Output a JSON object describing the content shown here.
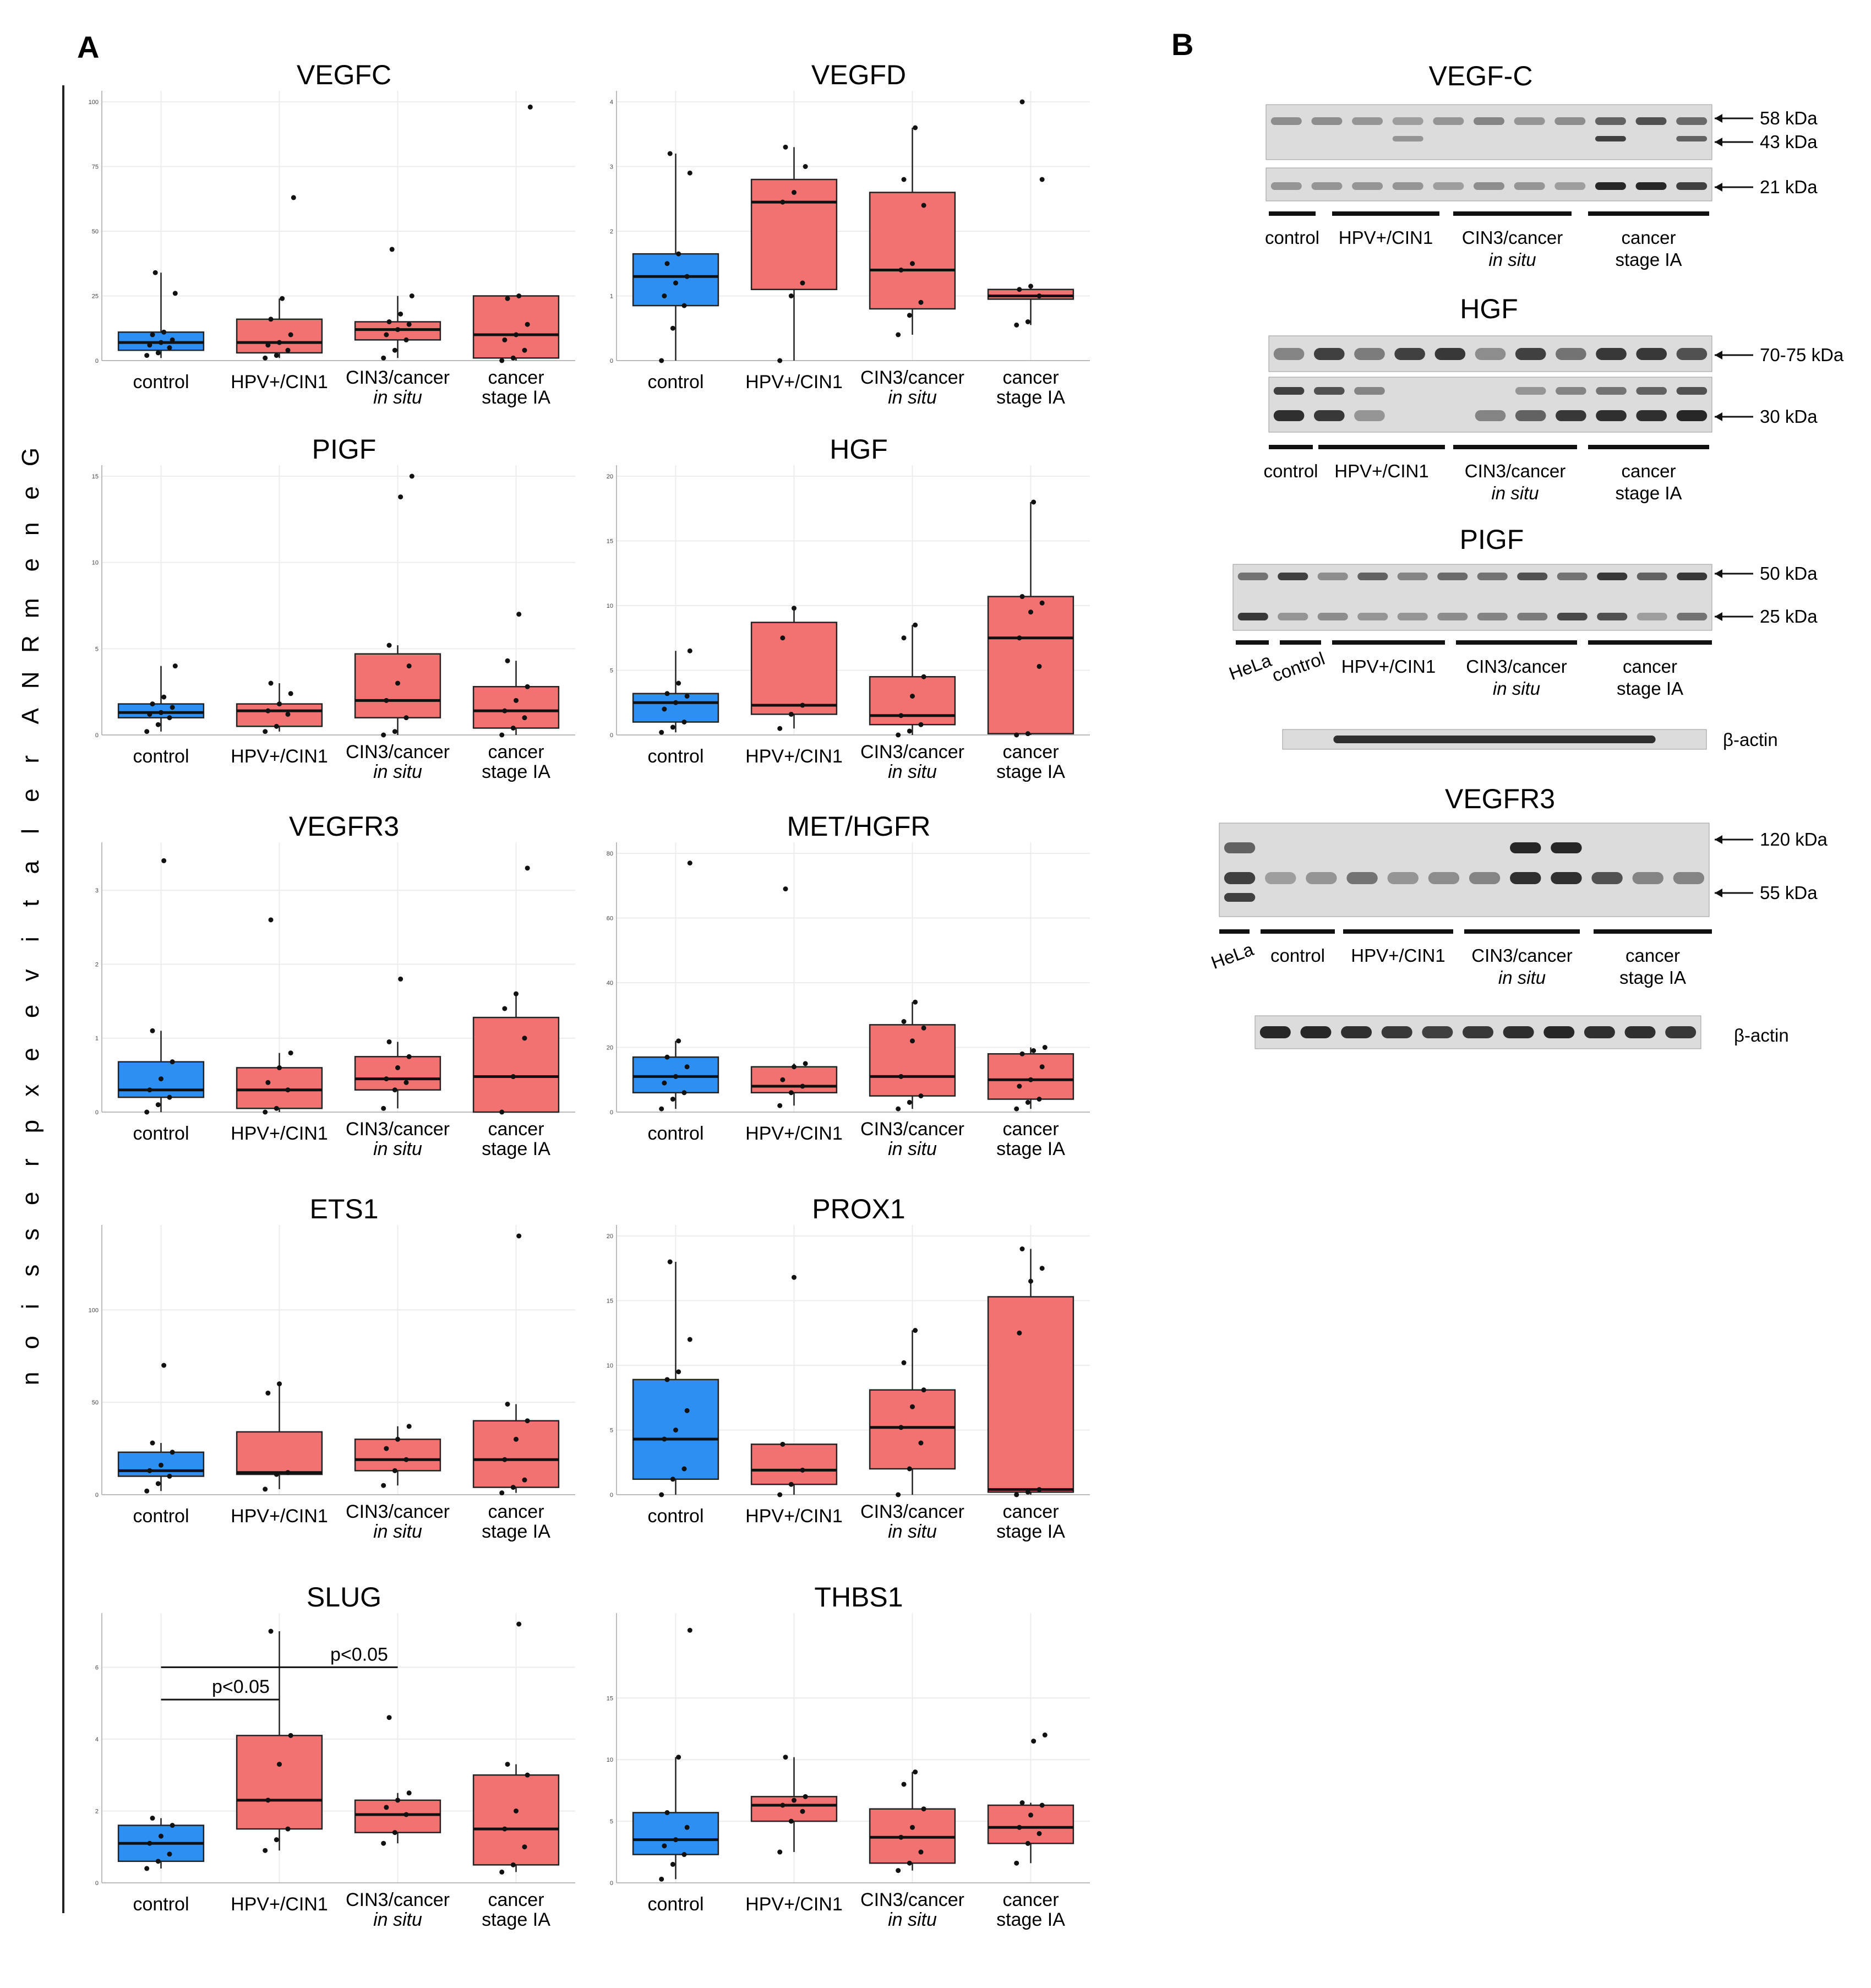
{
  "panel_a_label": "A",
  "panel_b_label": "B",
  "y_axis_label": "Gene mRNA relative expression",
  "colors": {
    "control": "#2e8ff2",
    "other": "#f27272",
    "grid": "#ececec",
    "axis": "#333333"
  },
  "chart_data": [
    {
      "type": "box",
      "title": "VEGFC",
      "ylim": [
        0,
        100
      ],
      "yticks": [
        0,
        25,
        50,
        75,
        100
      ],
      "categories": [
        "control",
        "HPV+/CIN1",
        "CIN3/cancer in situ",
        "cancer stage IA"
      ],
      "boxes": [
        {
          "q1": 4,
          "median": 7,
          "q3": 11,
          "whisker_low": 1,
          "whisker_high": 34,
          "points": [
            2,
            3,
            5,
            6,
            7,
            8,
            10,
            11,
            26,
            34
          ]
        },
        {
          "q1": 3,
          "median": 7,
          "q3": 16,
          "whisker_low": 1,
          "whisker_high": 24,
          "points": [
            1,
            2,
            4,
            6,
            7,
            10,
            16,
            24,
            63
          ]
        },
        {
          "q1": 8,
          "median": 12,
          "q3": 15,
          "whisker_low": 1,
          "whisker_high": 25,
          "points": [
            1,
            4,
            8,
            10,
            12,
            14,
            15,
            18,
            25,
            43
          ]
        },
        {
          "q1": 1,
          "median": 10,
          "q3": 25,
          "whisker_low": 0,
          "whisker_high": 25,
          "points": [
            0,
            1,
            4,
            8,
            10,
            14,
            24,
            25,
            98
          ]
        }
      ]
    },
    {
      "type": "box",
      "title": "VEGFD",
      "ylim": [
        0,
        4
      ],
      "yticks": [
        0,
        1,
        2,
        3,
        4
      ],
      "categories": [
        "control",
        "HPV+/CIN1",
        "CIN3/cancer in situ",
        "cancer stage IA"
      ],
      "boxes": [
        {
          "q1": 0.85,
          "median": 1.3,
          "q3": 1.65,
          "whisker_low": 0,
          "whisker_high": 3.2,
          "points": [
            0,
            0.5,
            0.85,
            1,
            1.2,
            1.3,
            1.5,
            1.65,
            2.9,
            3.2
          ]
        },
        {
          "q1": 1.1,
          "median": 2.45,
          "q3": 2.8,
          "whisker_low": 0,
          "whisker_high": 3.3,
          "points": [
            0,
            1,
            1.2,
            2.45,
            2.6,
            3.0,
            3.3
          ]
        },
        {
          "q1": 0.8,
          "median": 1.4,
          "q3": 2.6,
          "whisker_low": 0.4,
          "whisker_high": 3.6,
          "points": [
            0.4,
            0.7,
            0.9,
            1.4,
            1.5,
            2.4,
            2.8,
            3.6
          ]
        },
        {
          "q1": 0.95,
          "median": 1.0,
          "q3": 1.1,
          "whisker_low": 0.55,
          "whisker_high": 1.15,
          "points": [
            0.55,
            0.6,
            1.0,
            1.1,
            1.15,
            2.8,
            4.0
          ]
        }
      ]
    },
    {
      "type": "box",
      "title": "PIGF",
      "ylim": [
        0,
        15
      ],
      "yticks": [
        0,
        5,
        10,
        15
      ],
      "categories": [
        "control",
        "HPV+/CIN1",
        "CIN3/cancer in situ",
        "cancer stage IA"
      ],
      "boxes": [
        {
          "q1": 1.0,
          "median": 1.3,
          "q3": 1.8,
          "whisker_low": 0.2,
          "whisker_high": 4.0,
          "points": [
            0.2,
            0.6,
            1.0,
            1.2,
            1.3,
            1.6,
            1.8,
            2.2,
            4.0
          ]
        },
        {
          "q1": 0.5,
          "median": 1.4,
          "q3": 1.8,
          "whisker_low": 0.2,
          "whisker_high": 3.0,
          "points": [
            0.2,
            0.5,
            1.2,
            1.4,
            1.8,
            2.4,
            3.0
          ]
        },
        {
          "q1": 1.0,
          "median": 2.0,
          "q3": 4.7,
          "whisker_low": 0,
          "whisker_high": 5.2,
          "points": [
            0,
            0.2,
            1.0,
            2.0,
            3.0,
            4.0,
            5.2,
            13.8,
            15
          ]
        },
        {
          "q1": 0.4,
          "median": 1.4,
          "q3": 2.8,
          "whisker_low": 0,
          "whisker_high": 4.3,
          "points": [
            0,
            0.4,
            1.0,
            1.4,
            2.0,
            2.8,
            4.3,
            7.0
          ]
        }
      ]
    },
    {
      "type": "box",
      "title": "HGF",
      "ylim": [
        0,
        20
      ],
      "yticks": [
        0,
        5,
        10,
        15,
        20
      ],
      "categories": [
        "control",
        "HPV+/CIN1",
        "CIN3/cancer in situ",
        "cancer stage IA"
      ],
      "boxes": [
        {
          "q1": 1.0,
          "median": 2.5,
          "q3": 3.2,
          "whisker_low": 0.2,
          "whisker_high": 6.5,
          "points": [
            0.2,
            0.6,
            1.0,
            2.0,
            2.5,
            3.0,
            3.2,
            4.0,
            6.5
          ]
        },
        {
          "q1": 1.6,
          "median": 2.3,
          "q3": 8.7,
          "whisker_low": 0.5,
          "whisker_high": 9.8,
          "points": [
            0.5,
            1.6,
            2.3,
            7.5,
            9.8
          ]
        },
        {
          "q1": 0.8,
          "median": 1.5,
          "q3": 4.5,
          "whisker_low": 0,
          "whisker_high": 8.5,
          "points": [
            0,
            0.3,
            0.8,
            1.5,
            3.0,
            4.5,
            7.5,
            8.5
          ]
        },
        {
          "q1": 0.1,
          "median": 7.5,
          "q3": 10.7,
          "whisker_low": 0,
          "whisker_high": 18,
          "points": [
            0,
            0.1,
            5.3,
            7.5,
            9.5,
            10.2,
            10.7,
            18
          ]
        }
      ]
    },
    {
      "type": "box",
      "title": "VEGFR3",
      "ylim": [
        0,
        3.5
      ],
      "yticks": [
        0,
        1,
        2,
        3
      ],
      "categories": [
        "control",
        "HPV+/CIN1",
        "CIN3/cancer in situ",
        "cancer stage IA"
      ],
      "boxes": [
        {
          "q1": 0.2,
          "median": 0.3,
          "q3": 0.68,
          "whisker_low": 0,
          "whisker_high": 1.1,
          "points": [
            0,
            0.1,
            0.2,
            0.3,
            0.45,
            0.68,
            1.1,
            3.4
          ]
        },
        {
          "q1": 0.05,
          "median": 0.3,
          "q3": 0.6,
          "whisker_low": 0,
          "whisker_high": 0.8,
          "points": [
            0,
            0.05,
            0.3,
            0.4,
            0.6,
            0.8,
            2.6
          ]
        },
        {
          "q1": 0.3,
          "median": 0.45,
          "q3": 0.75,
          "whisker_low": 0.05,
          "whisker_high": 0.95,
          "points": [
            0.05,
            0.3,
            0.4,
            0.45,
            0.6,
            0.75,
            0.95,
            1.8
          ]
        },
        {
          "q1": 0,
          "median": 0.48,
          "q3": 1.28,
          "whisker_low": 0,
          "whisker_high": 1.6,
          "points": [
            0,
            0.48,
            1.0,
            1.4,
            1.6,
            3.3
          ]
        }
      ]
    },
    {
      "type": "box",
      "title": "MET/HGFR",
      "ylim": [
        0,
        80
      ],
      "yticks": [
        0,
        20,
        40,
        60,
        80
      ],
      "categories": [
        "control",
        "HPV+/CIN1",
        "CIN3/cancer in situ",
        "cancer stage IA"
      ],
      "boxes": [
        {
          "q1": 6,
          "median": 11,
          "q3": 17,
          "whisker_low": 1,
          "whisker_high": 22,
          "points": [
            1,
            4,
            6,
            9,
            11,
            14,
            17,
            22,
            77
          ]
        },
        {
          "q1": 6,
          "median": 8,
          "q3": 14,
          "whisker_low": 2,
          "whisker_high": 15,
          "points": [
            2,
            6,
            8,
            10,
            14,
            15,
            69
          ]
        },
        {
          "q1": 5,
          "median": 11,
          "q3": 27,
          "whisker_low": 1,
          "whisker_high": 34,
          "points": [
            1,
            3,
            5,
            11,
            22,
            26,
            28,
            34
          ]
        },
        {
          "q1": 4,
          "median": 10,
          "q3": 18,
          "whisker_low": 1,
          "whisker_high": 20,
          "points": [
            1,
            3,
            4,
            8,
            10,
            14,
            18,
            19,
            20
          ]
        }
      ]
    },
    {
      "type": "box",
      "title": "ETS1",
      "ylim": [
        0,
        140
      ],
      "yticks": [
        0,
        50,
        100
      ],
      "categories": [
        "control",
        "HPV+/CIN1",
        "CIN3/cancer in situ",
        "cancer stage IA"
      ],
      "boxes": [
        {
          "q1": 10,
          "median": 13,
          "q3": 23,
          "whisker_low": 2,
          "whisker_high": 28,
          "points": [
            2,
            6,
            10,
            13,
            16,
            23,
            28,
            70
          ]
        },
        {
          "q1": 11,
          "median": 12,
          "q3": 34,
          "whisker_low": 3,
          "whisker_high": 60,
          "points": [
            3,
            11,
            12,
            55,
            60
          ]
        },
        {
          "q1": 13,
          "median": 19,
          "q3": 30,
          "whisker_low": 5,
          "whisker_high": 37,
          "points": [
            5,
            13,
            19,
            25,
            30,
            37
          ]
        },
        {
          "q1": 4,
          "median": 19,
          "q3": 40,
          "whisker_low": 1,
          "whisker_high": 49,
          "points": [
            1,
            4,
            8,
            19,
            30,
            40,
            49,
            140
          ]
        }
      ]
    },
    {
      "type": "box",
      "title": "PROX1",
      "ylim": [
        0,
        20
      ],
      "yticks": [
        0,
        5,
        10,
        15,
        20
      ],
      "categories": [
        "control",
        "HPV+/CIN1",
        "CIN3/cancer in situ",
        "cancer stage IA"
      ],
      "boxes": [
        {
          "q1": 1.2,
          "median": 4.3,
          "q3": 8.9,
          "whisker_low": 0,
          "whisker_high": 18,
          "points": [
            0,
            1.2,
            2.0,
            4.3,
            5.0,
            6.5,
            8.9,
            9.5,
            12,
            18
          ]
        },
        {
          "q1": 0.8,
          "median": 1.9,
          "q3": 3.9,
          "whisker_low": 0,
          "whisker_high": 3.9,
          "points": [
            0,
            0.8,
            1.9,
            3.9,
            16.8
          ]
        },
        {
          "q1": 2.0,
          "median": 5.2,
          "q3": 8.1,
          "whisker_low": 0,
          "whisker_high": 12.7,
          "points": [
            0,
            2.0,
            4.0,
            5.2,
            6.8,
            8.1,
            10.2,
            12.7
          ]
        },
        {
          "q1": 0.2,
          "median": 0.4,
          "q3": 15.3,
          "whisker_low": 0,
          "whisker_high": 19,
          "points": [
            0,
            0.2,
            0.4,
            12.5,
            16.5,
            17.5,
            19
          ]
        }
      ]
    },
    {
      "type": "box",
      "title": "SLUG",
      "ylim": [
        0,
        7.2
      ],
      "yticks": [
        0,
        2,
        4,
        6
      ],
      "categories": [
        "control",
        "HPV+/CIN1",
        "CIN3/cancer in situ",
        "cancer stage IA"
      ],
      "boxes": [
        {
          "q1": 0.6,
          "median": 1.1,
          "q3": 1.6,
          "whisker_low": 0.4,
          "whisker_high": 1.8,
          "points": [
            0.4,
            0.6,
            0.8,
            1.1,
            1.3,
            1.6,
            1.8
          ]
        },
        {
          "q1": 1.5,
          "median": 2.3,
          "q3": 4.1,
          "whisker_low": 0.9,
          "whisker_high": 7.0,
          "points": [
            0.9,
            1.2,
            1.5,
            2.3,
            3.3,
            4.1,
            7.0
          ]
        },
        {
          "q1": 1.4,
          "median": 1.9,
          "q3": 2.3,
          "whisker_low": 1.1,
          "whisker_high": 2.5,
          "points": [
            1.1,
            1.4,
            1.9,
            2.1,
            2.3,
            2.5,
            4.6
          ]
        },
        {
          "q1": 0.5,
          "median": 1.5,
          "q3": 3.0,
          "whisker_low": 0.3,
          "whisker_high": 3.3,
          "points": [
            0.3,
            0.5,
            1.0,
            1.5,
            2.0,
            3.0,
            3.3,
            7.2
          ]
        }
      ],
      "significance": [
        {
          "from": 0,
          "to": 1,
          "label": "p<0.05",
          "y": 5.1
        },
        {
          "from": 0,
          "to": 2,
          "label": "p<0.05",
          "y": 6.0
        }
      ]
    },
    {
      "type": "box",
      "title": "THBS1",
      "ylim": [
        0,
        21
      ],
      "yticks": [
        0,
        5,
        10,
        15
      ],
      "categories": [
        "control",
        "HPV+/CIN1",
        "CIN3/cancer in situ",
        "cancer stage IA"
      ],
      "boxes": [
        {
          "q1": 2.3,
          "median": 3.5,
          "q3": 5.7,
          "whisker_low": 0.3,
          "whisker_high": 10.2,
          "points": [
            0.3,
            1.5,
            2.3,
            3.0,
            3.5,
            4.5,
            5.7,
            10.2,
            20.5
          ]
        },
        {
          "q1": 5.0,
          "median": 6.3,
          "q3": 7.0,
          "whisker_low": 2.5,
          "whisker_high": 10.2,
          "points": [
            2.5,
            5.0,
            5.8,
            6.3,
            6.7,
            7.0,
            10.2
          ]
        },
        {
          "q1": 1.6,
          "median": 3.7,
          "q3": 6.0,
          "whisker_low": 1.0,
          "whisker_high": 9.0,
          "points": [
            1.0,
            1.6,
            2.5,
            3.7,
            4.5,
            6.0,
            8.0,
            9.0
          ]
        },
        {
          "q1": 3.2,
          "median": 4.5,
          "q3": 6.3,
          "whisker_low": 1.6,
          "whisker_high": 6.5,
          "points": [
            1.6,
            3.2,
            4.0,
            4.5,
            5.5,
            6.3,
            6.5,
            11.5,
            12
          ]
        }
      ]
    }
  ],
  "westerns": [
    {
      "title": "VEGF-C",
      "markers": [
        "58 kDa",
        "43 kDa",
        "21 kDa"
      ],
      "groups": [
        "control",
        "HPV+/CIN1",
        "CIN3/cancer",
        "in situ",
        "cancer",
        "stage IA"
      ]
    },
    {
      "title": "HGF",
      "markers": [
        "70-75 kDa",
        "30 kDa"
      ],
      "groups": [
        "control",
        "HPV+/CIN1",
        "CIN3/cancer",
        "in situ",
        "cancer",
        "stage IA"
      ]
    },
    {
      "title": "PIGF",
      "markers": [
        "50 kDa",
        "25 kDa"
      ],
      "groups": [
        "HeLa",
        "control",
        "HPV+/CIN1",
        "CIN3/cancer",
        "in situ",
        "cancer",
        "stage IA"
      ],
      "loading": "β-actin"
    },
    {
      "title": "VEGFR3",
      "markers": [
        "120 kDa",
        "55 kDa"
      ],
      "groups": [
        "HeLa",
        "control",
        "HPV+/CIN1",
        "CIN3/cancer",
        "in situ",
        "cancer",
        "stage IA"
      ],
      "loading": "β-actin"
    }
  ]
}
